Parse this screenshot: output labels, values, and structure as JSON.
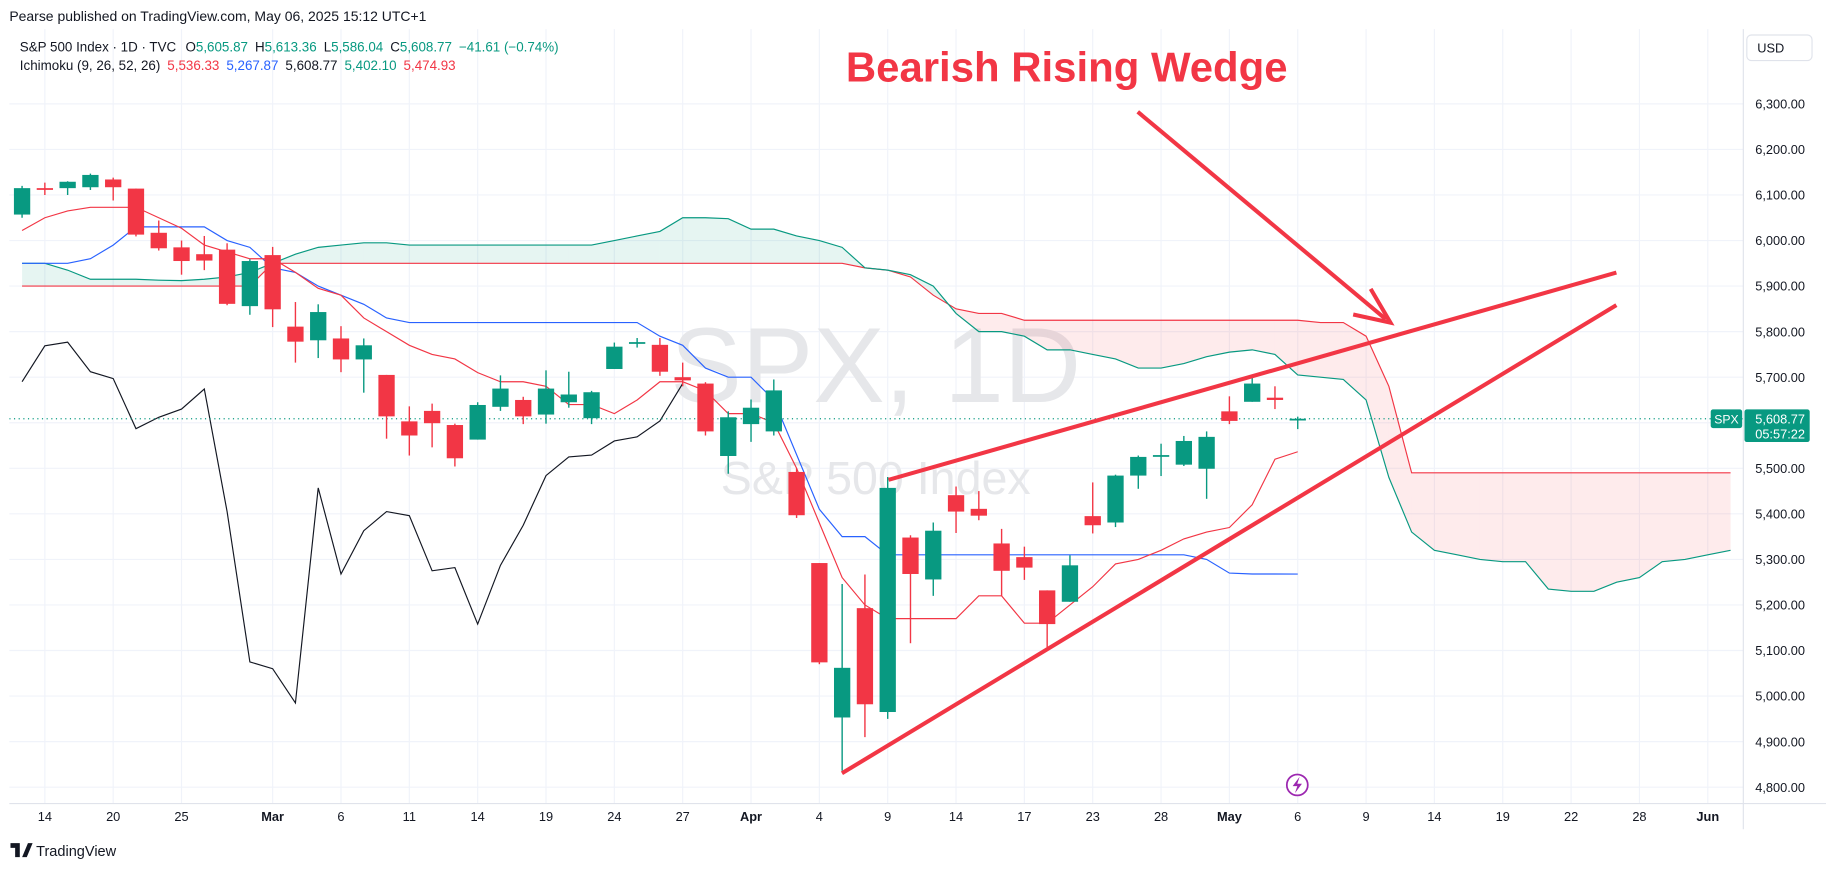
{
  "header": {
    "published": "Pearse published on TradingView.com, May 06, 2025 15:12 UTC+1",
    "symbol_line": "S&P 500 Index · 1D · TVC",
    "ohlc": [
      {
        "key": "O",
        "value": "5,605.87"
      },
      {
        "key": "H",
        "value": "5,613.36"
      },
      {
        "key": "L",
        "value": "5,586.04"
      },
      {
        "key": "C",
        "value": "5,608.77"
      }
    ],
    "change": "−41.61 (−0.74%)",
    "indicator_name": "Ichimoku (9, 26, 52, 26)",
    "indicator_values": [
      {
        "value": "5,536.33",
        "color": "#f23645"
      },
      {
        "value": "5,267.87",
        "color": "#2962ff"
      },
      {
        "value": "5,608.77",
        "color": "#131722"
      },
      {
        "value": "5,402.10",
        "color": "#089981"
      },
      {
        "value": "5,474.93",
        "color": "#f23645"
      }
    ],
    "currency": "USD"
  },
  "chart_data": {
    "type": "candlestick",
    "title": "Bearish Rising Wedge",
    "watermark": "SPX, 1D",
    "watermark_subtitle": "S&P 500 Index",
    "up_color": "#089981",
    "down_color": "#f23645",
    "grid": true,
    "xlim": [
      -0.56,
      75.56
    ],
    "ylim": [
      4764,
      6464
    ],
    "xticks": [
      {
        "value": 1,
        "label": "14"
      },
      {
        "value": 4,
        "label": "20"
      },
      {
        "value": 7,
        "label": "25"
      },
      {
        "value": 11,
        "label": "Mar"
      },
      {
        "value": 14,
        "label": "6"
      },
      {
        "value": 17,
        "label": "11"
      },
      {
        "value": 20,
        "label": "14"
      },
      {
        "value": 23,
        "label": "19"
      },
      {
        "value": 26,
        "label": "24"
      },
      {
        "value": 29,
        "label": "27"
      },
      {
        "value": 32,
        "label": "Apr"
      },
      {
        "value": 35,
        "label": "4"
      },
      {
        "value": 38,
        "label": "9"
      },
      {
        "value": 41,
        "label": "14"
      },
      {
        "value": 44,
        "label": "17"
      },
      {
        "value": 47,
        "label": "23"
      },
      {
        "value": 50,
        "label": "28"
      },
      {
        "value": 53,
        "label": "May"
      },
      {
        "value": 56,
        "label": "6"
      },
      {
        "value": 59,
        "label": "9"
      },
      {
        "value": 62,
        "label": "14"
      },
      {
        "value": 65,
        "label": "19"
      },
      {
        "value": 68,
        "label": "22"
      },
      {
        "value": 71,
        "label": "28"
      },
      {
        "value": 74,
        "label": "Jun"
      }
    ],
    "yticks": [
      {
        "value": 4800,
        "label": "4,800.00"
      },
      {
        "value": 4900,
        "label": "4,900.00"
      },
      {
        "value": 5000,
        "label": "5,000.00"
      },
      {
        "value": 5100,
        "label": "5,100.00"
      },
      {
        "value": 5200,
        "label": "5,200.00"
      },
      {
        "value": 5300,
        "label": "5,300.00"
      },
      {
        "value": 5400,
        "label": "5,400.00"
      },
      {
        "value": 5500,
        "label": "5,500.00"
      },
      {
        "value": 5600,
        "label": "5,600.00"
      },
      {
        "value": 5700,
        "label": "5,700.00"
      },
      {
        "value": 5800,
        "label": "5,800.00"
      },
      {
        "value": 5900,
        "label": "5,900.00"
      },
      {
        "value": 6000,
        "label": "6,000.00"
      },
      {
        "value": 6100,
        "label": "6,100.00"
      },
      {
        "value": 6200,
        "label": "6,200.00"
      },
      {
        "value": 6300,
        "label": "6,300.00"
      }
    ],
    "open": [
      6057,
      6115,
      6115,
      6117,
      6134,
      6114,
      6017,
      5985,
      5970,
      5980,
      5856,
      5968,
      5811,
      5781,
      5785,
      5739,
      5705,
      5603,
      5626,
      5595,
      5563,
      5635,
      5650,
      5618,
      5645,
      5610,
      5718,
      5775,
      5771,
      5700,
      5686,
      5527,
      5597,
      5581,
      5492,
      5292,
      4953,
      5193,
      4965,
      5348,
      5256,
      5441,
      5411,
      5335,
      5305,
      5232,
      5207,
      5395,
      5381,
      5484,
      5529,
      5508,
      5499,
      5625,
      5646,
      5655,
      5605.87
    ],
    "high": [
      6120,
      6127,
      6130,
      6147,
      6138,
      6114,
      6044,
      6000,
      6010,
      5994,
      5959,
      5986,
      5865,
      5860,
      5812,
      5785,
      5705,
      5636,
      5642,
      5598,
      5645,
      5704,
      5657,
      5715,
      5712,
      5670,
      5776,
      5786,
      5786,
      5732,
      5689,
      5625,
      5651,
      5695,
      5500,
      5292,
      5246,
      5267,
      5481,
      5353,
      5381,
      5460,
      5450,
      5367,
      5328,
      5232,
      5309,
      5469,
      5486,
      5528,
      5554,
      5571,
      5581,
      5658,
      5700,
      5680,
      5613.36
    ],
    "low": [
      6050,
      6100,
      6100,
      6111,
      6088,
      6009,
      5978,
      5925,
      5935,
      5858,
      5837,
      5810,
      5732,
      5742,
      5711,
      5666,
      5565,
      5528,
      5546,
      5504,
      5563,
      5626,
      5597,
      5598,
      5633,
      5597,
      5718,
      5765,
      5703,
      5680,
      5572,
      5488,
      5558,
      5572,
      5391,
      5070,
      4836,
      4910,
      4950,
      5116,
      5220,
      5358,
      5386,
      5220,
      5255,
      5101,
      5207,
      5357,
      5371,
      5455,
      5483,
      5505,
      5433,
      5597,
      5646,
      5630,
      5586.04
    ],
    "close": [
      6115,
      6114,
      6129,
      6144,
      6117,
      6013,
      5983,
      5955,
      5956,
      5861,
      5955,
      5849,
      5778,
      5843,
      5739,
      5770,
      5614,
      5572,
      5599,
      5522,
      5639,
      5675,
      5614,
      5675,
      5662,
      5667,
      5767,
      5777,
      5712,
      5693,
      5581,
      5612,
      5633,
      5671,
      5397,
      5074,
      5062,
      4982,
      5457,
      5268,
      5363,
      5405,
      5396,
      5275,
      5282,
      5158,
      5287,
      5375,
      5484,
      5525,
      5529,
      5560,
      5569,
      5604,
      5686,
      5650,
      5608.77
    ],
    "ichimoku": {
      "conversion": {
        "color": "#f23645",
        "values": [
          6022,
          6050,
          6065,
          6073,
          6073,
          6073,
          6050,
          6027,
          5990,
          5975,
          5960,
          5960,
          5930,
          5895,
          5880,
          5830,
          5800,
          5770,
          5750,
          5740,
          5710,
          5690,
          5690,
          5680,
          5640,
          5640,
          5620,
          5650,
          5690,
          5690,
          5670,
          5620,
          5620,
          5600,
          5500,
          5380,
          5260,
          5200,
          5170,
          5170,
          5170,
          5170,
          5220,
          5220,
          5160,
          5160,
          5200,
          5240,
          5290,
          5300,
          5320,
          5345,
          5360,
          5370,
          5420,
          5520,
          5536.33
        ]
      },
      "base": {
        "color": "#2962ff",
        "values": [
          5950,
          5950,
          5950,
          5960,
          5990,
          6030,
          6030,
          6030,
          6030,
          6000,
          5985,
          5940,
          5930,
          5900,
          5880,
          5860,
          5830,
          5820,
          5820,
          5820,
          5820,
          5820,
          5820,
          5820,
          5820,
          5820,
          5820,
          5820,
          5790,
          5770,
          5720,
          5700,
          5700,
          5650,
          5530,
          5410,
          5350,
          5350,
          5310,
          5310,
          5310,
          5310,
          5310,
          5310,
          5310,
          5310,
          5310,
          5310,
          5310,
          5310,
          5310,
          5310,
          5300,
          5270,
          5268,
          5268,
          5267.87
        ]
      },
      "lagging": {
        "color": "#131722",
        "values": [
          5690,
          5769,
          5777,
          5712,
          5697,
          5587,
          5612,
          5630,
          5674,
          5405,
          5075,
          5060,
          4985,
          5457,
          5268,
          5363,
          5405,
          5396,
          5275,
          5282,
          5158,
          5287,
          5375,
          5484,
          5525,
          5529,
          5560,
          5569,
          5604,
          5686
        ]
      },
      "leading_a": {
        "color": "#089981",
        "values": [
          5950,
          5950,
          5935,
          5915,
          5915,
          5915,
          5913,
          5912,
          5915,
          5920,
          5930,
          5950,
          5970,
          5985,
          5990,
          5995,
          5995,
          5990,
          5990,
          5990,
          5990,
          5990,
          5990,
          5990,
          5990,
          5990,
          6000,
          6010,
          6020,
          6050,
          6050,
          6048,
          6025,
          6025,
          6010,
          6000,
          5985,
          5940,
          5935,
          5925,
          5900,
          5840,
          5800,
          5800,
          5790,
          5760,
          5760,
          5750,
          5740,
          5720,
          5720,
          5730,
          5745,
          5755,
          5760,
          5750,
          5705,
          5700,
          5695,
          5650,
          5480,
          5360,
          5320,
          5310,
          5300,
          5295,
          5295,
          5235,
          5230,
          5230,
          5250,
          5260,
          5295,
          5300,
          5310,
          5320
        ]
      },
      "leading_b": {
        "color": "#f23645",
        "values": [
          5900,
          5900,
          5900,
          5900,
          5900,
          5900,
          5900,
          5900,
          5900,
          5900,
          5900,
          5950,
          5950,
          5950,
          5950,
          5950,
          5950,
          5950,
          5950,
          5950,
          5950,
          5950,
          5950,
          5950,
          5950,
          5950,
          5950,
          5950,
          5950,
          5950,
          5950,
          5950,
          5950,
          5950,
          5950,
          5950,
          5950,
          5940,
          5935,
          5920,
          5880,
          5850,
          5840,
          5840,
          5825,
          5825,
          5825,
          5825,
          5825,
          5825,
          5825,
          5825,
          5825,
          5825,
          5825,
          5825,
          5825,
          5820,
          5820,
          5790,
          5680,
          5490,
          5490,
          5490,
          5490,
          5490,
          5490,
          5490,
          5490,
          5490,
          5490,
          5490,
          5490,
          5490,
          5490,
          5490
        ]
      }
    },
    "last_price": {
      "symbol": "SPX",
      "value": 5608.77,
      "label": "5,608.77",
      "countdown": "05:57:22",
      "color": "#089981"
    }
  },
  "footer": {
    "brand": "TradingView"
  }
}
